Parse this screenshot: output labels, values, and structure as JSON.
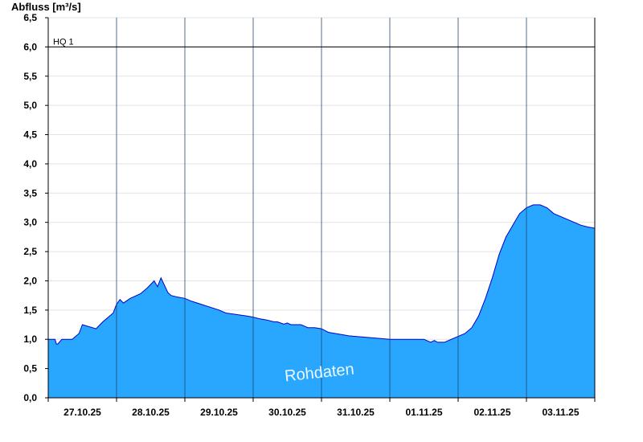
{
  "chart_data": {
    "type": "area",
    "ylabel": "Abfluss [m³/s]",
    "ylim": [
      0,
      6.5
    ],
    "yticks": [
      "0,0",
      "0,5",
      "1,0",
      "1,5",
      "2,0",
      "2,5",
      "3,0",
      "3,5",
      "4,0",
      "4,5",
      "5,0",
      "5,5",
      "6,0",
      "6,5"
    ],
    "x_range": [
      0,
      8
    ],
    "day_separators": [
      1,
      2,
      3,
      4,
      5,
      6,
      7
    ],
    "categories": [
      "27.10.25",
      "28.10.25",
      "29.10.25",
      "30.10.25",
      "31.10.25",
      "01.11.25",
      "02.11.25",
      "03.11.25"
    ],
    "grid": true,
    "fill_color": "#29A7FF",
    "line_color": "#0000CC",
    "reference_line": {
      "label": "HQ 1",
      "value": 6.0
    },
    "watermark": "Rohdaten",
    "series": [
      {
        "x": [
          0,
          0.1,
          0.12,
          0.14,
          0.2,
          0.35,
          0.45,
          0.5,
          0.7,
          0.8,
          0.95,
          1.0,
          1.05,
          1.1,
          1.2,
          1.35,
          1.45,
          1.55,
          1.6,
          1.65,
          1.75,
          1.8,
          1.9,
          2.0,
          2.1,
          2.5,
          2.6,
          2.9,
          3.0,
          3.1,
          3.2,
          3.3,
          3.35,
          3.4,
          3.45,
          3.5,
          3.55,
          3.7,
          3.8,
          3.9,
          4.0,
          4.05,
          4.1,
          4.2,
          4.3,
          4.4,
          4.5,
          4.8,
          5.0,
          5.5,
          5.6,
          5.65,
          5.7,
          5.8,
          5.9,
          6.0,
          6.1,
          6.2,
          6.3,
          6.4,
          6.5,
          6.6,
          6.7,
          6.8,
          6.9,
          7.0,
          7.1,
          7.2,
          7.3,
          7.35,
          7.4,
          7.5,
          7.6,
          7.7,
          7.8,
          7.9,
          8.0
        ],
        "values": [
          1.0,
          1.0,
          0.92,
          0.92,
          1.0,
          1.0,
          1.1,
          1.25,
          1.18,
          1.3,
          1.45,
          1.6,
          1.68,
          1.62,
          1.7,
          1.78,
          1.88,
          2.0,
          1.9,
          2.05,
          1.8,
          1.75,
          1.72,
          1.7,
          1.65,
          1.5,
          1.45,
          1.4,
          1.38,
          1.35,
          1.33,
          1.3,
          1.3,
          1.28,
          1.26,
          1.28,
          1.25,
          1.25,
          1.2,
          1.2,
          1.18,
          1.15,
          1.12,
          1.1,
          1.08,
          1.06,
          1.05,
          1.02,
          1.0,
          1.0,
          0.95,
          0.98,
          0.95,
          0.95,
          1.0,
          1.05,
          1.1,
          1.2,
          1.4,
          1.7,
          2.05,
          2.45,
          2.75,
          2.95,
          3.15,
          3.25,
          3.3,
          3.3,
          3.25,
          3.2,
          3.15,
          3.1,
          3.05,
          3.0,
          2.95,
          2.92,
          2.9
        ]
      }
    ]
  }
}
